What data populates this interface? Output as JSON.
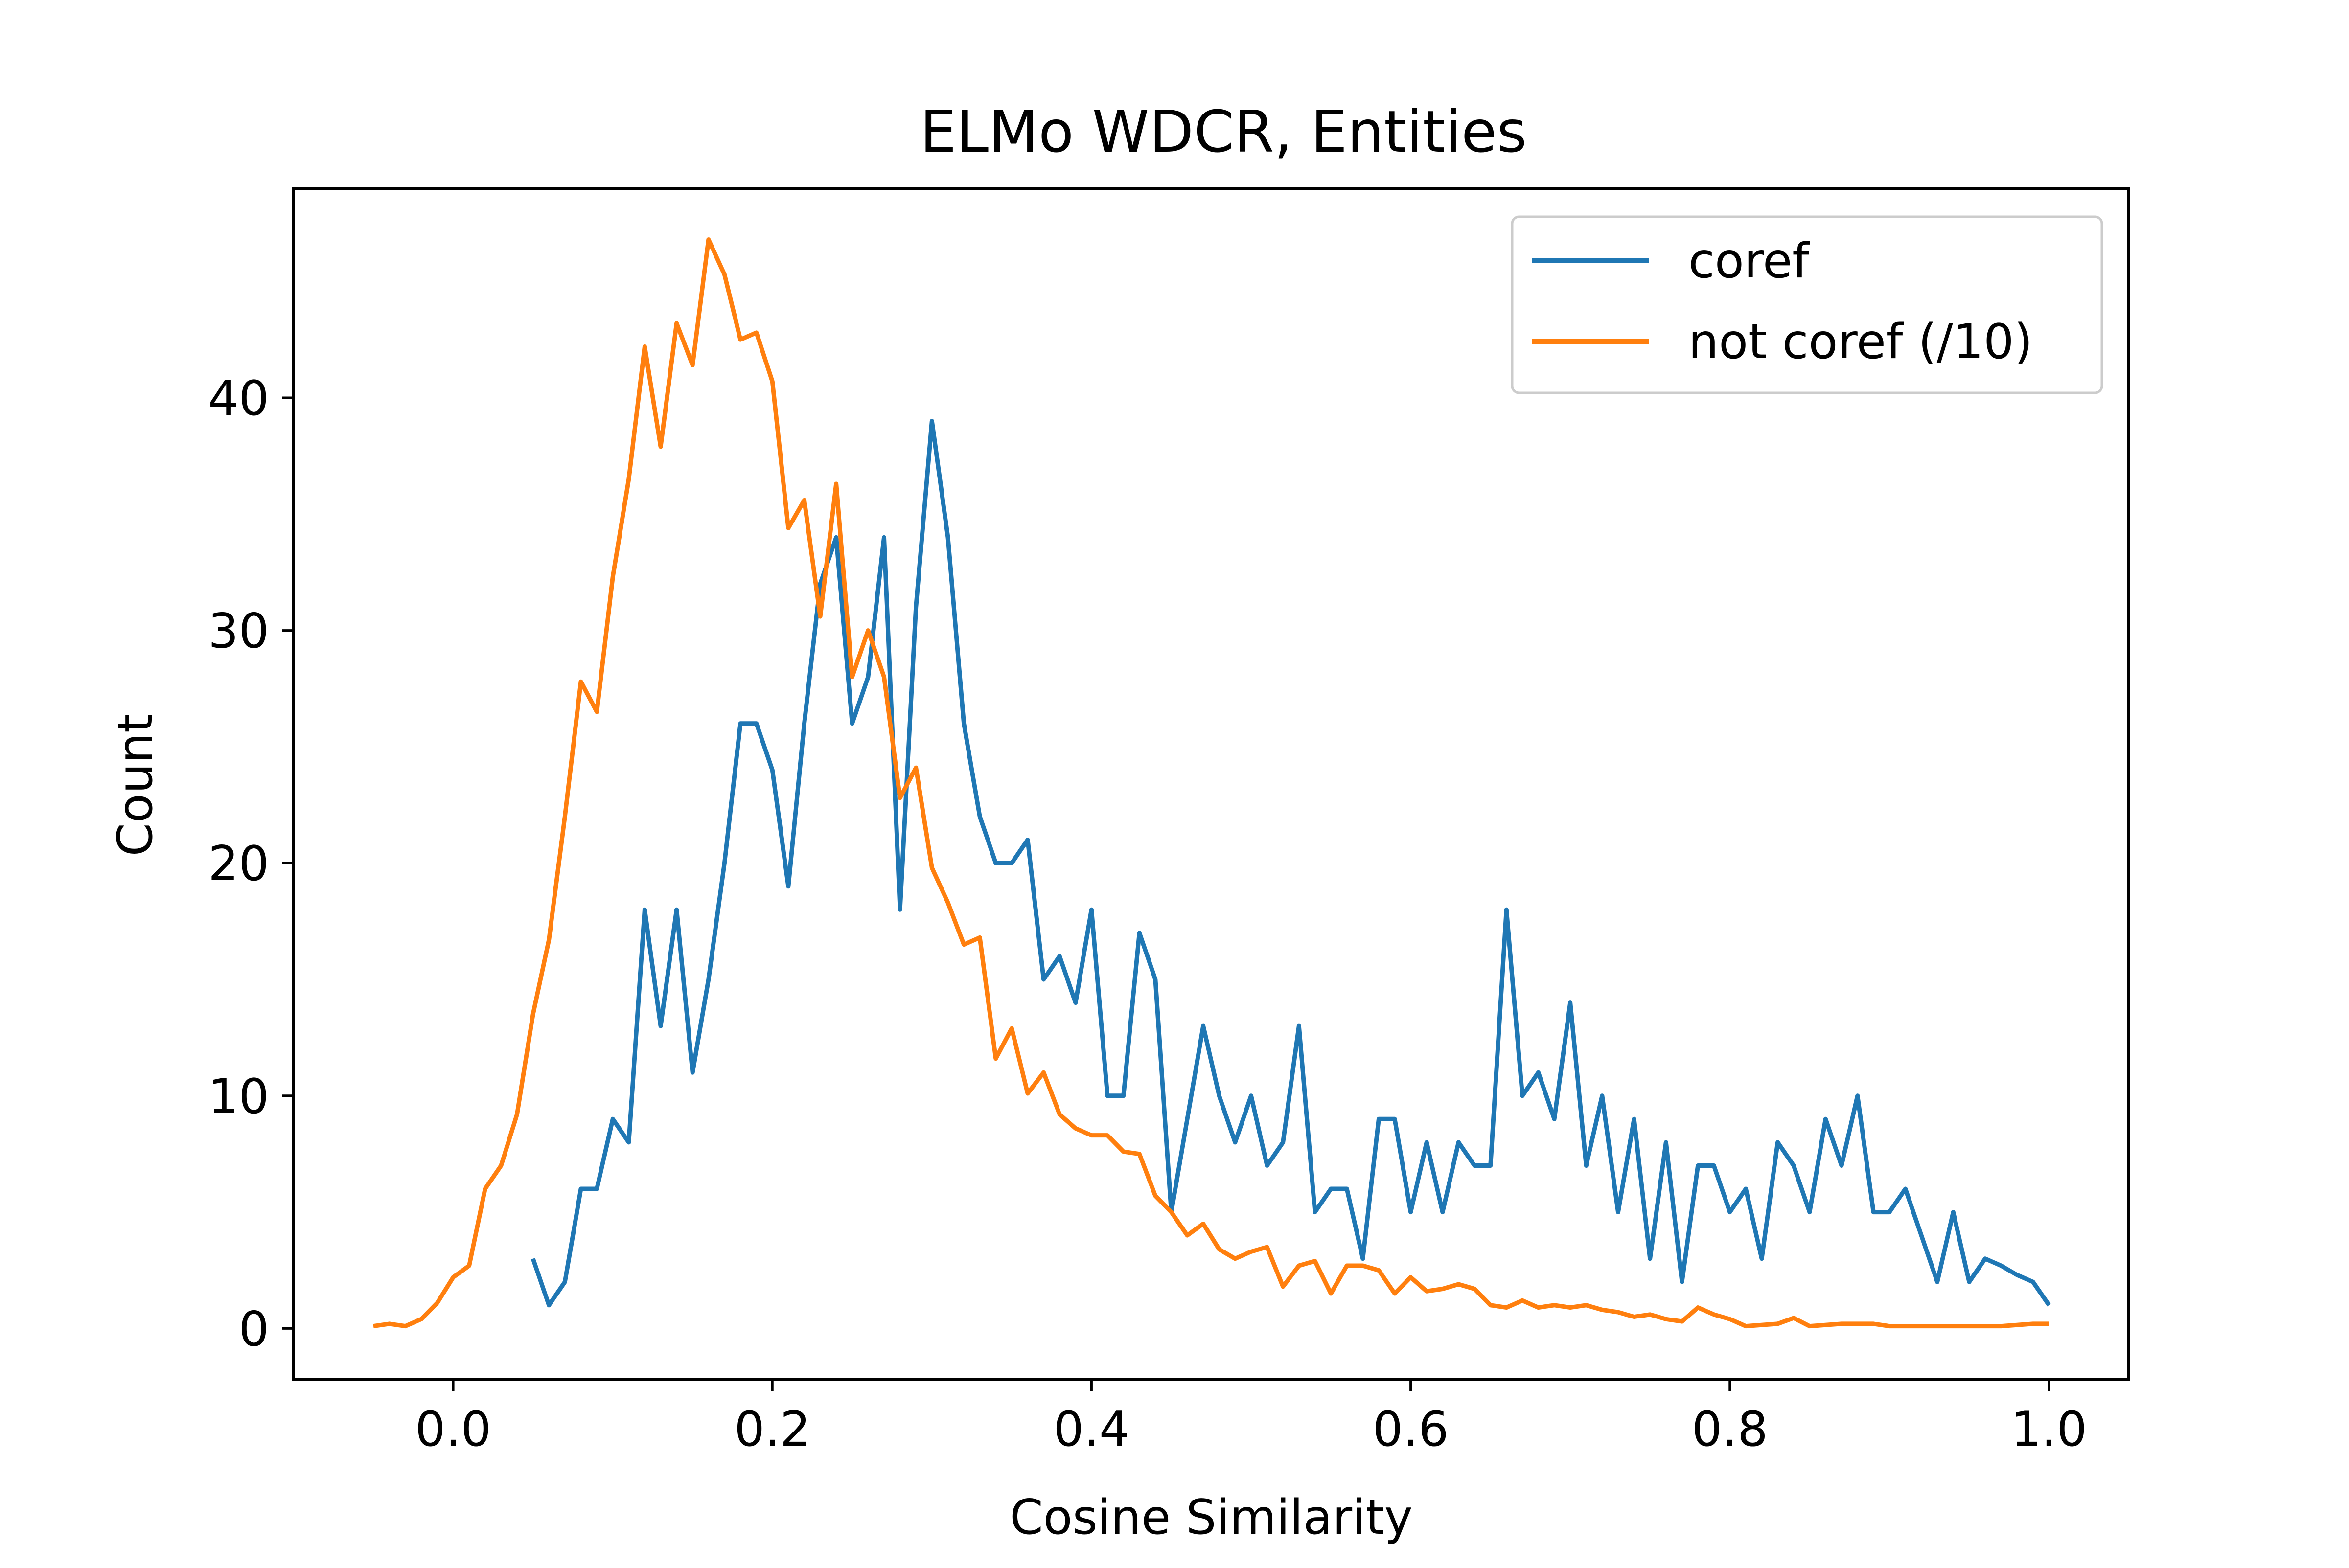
{
  "chart_data": {
    "type": "line",
    "title": "ELMo WDCR, Entities",
    "xlabel": "Cosine Similarity",
    "ylabel": "Count",
    "xlim": [
      -0.1,
      1.05
    ],
    "ylim": [
      -2.2,
      49
    ],
    "x_ticks": [
      {
        "value": 0.0,
        "label": "0.0"
      },
      {
        "value": 0.2,
        "label": "0.2"
      },
      {
        "value": 0.4,
        "label": "0.4"
      },
      {
        "value": 0.6,
        "label": "0.6"
      },
      {
        "value": 0.8,
        "label": "0.8"
      },
      {
        "value": 1.0,
        "label": "1.0"
      }
    ],
    "y_ticks": [
      {
        "value": 0,
        "label": "0"
      },
      {
        "value": 10,
        "label": "10"
      },
      {
        "value": 20,
        "label": "20"
      },
      {
        "value": 30,
        "label": "30"
      },
      {
        "value": 40,
        "label": "40"
      }
    ],
    "grid": false,
    "legend_position": "top-right",
    "series": [
      {
        "name": "coref",
        "color": "#1f77b4",
        "x": [
          0.05,
          0.06,
          0.07,
          0.08,
          0.09,
          0.1,
          0.11,
          0.12,
          0.13,
          0.14,
          0.15,
          0.16,
          0.17,
          0.18,
          0.19,
          0.2,
          0.21,
          0.22,
          0.23,
          0.24,
          0.25,
          0.26,
          0.27,
          0.28,
          0.29,
          0.3,
          0.31,
          0.32,
          0.33,
          0.34,
          0.35,
          0.36,
          0.37,
          0.38,
          0.39,
          0.4,
          0.41,
          0.42,
          0.43,
          0.44,
          0.45,
          0.46,
          0.47,
          0.48,
          0.49,
          0.5,
          0.51,
          0.52,
          0.53,
          0.54,
          0.55,
          0.56,
          0.57,
          0.58,
          0.59,
          0.6,
          0.61,
          0.62,
          0.63,
          0.64,
          0.65,
          0.66,
          0.67,
          0.68,
          0.69,
          0.7,
          0.71,
          0.72,
          0.73,
          0.74,
          0.75,
          0.76,
          0.77,
          0.78,
          0.79,
          0.8,
          0.81,
          0.82,
          0.83,
          0.84,
          0.85,
          0.86,
          0.87,
          0.88,
          0.89,
          0.9,
          0.91,
          0.92,
          0.93,
          0.94,
          0.95,
          0.96,
          0.97,
          0.98,
          0.99,
          1.0
        ],
        "y": [
          3,
          1,
          2,
          6,
          6,
          9,
          8,
          18,
          13,
          18,
          11,
          15,
          20,
          26,
          26,
          24,
          19,
          26,
          32,
          34,
          26,
          28,
          34,
          18,
          31,
          39,
          34,
          26,
          22,
          20,
          20,
          21,
          15,
          16,
          14,
          18,
          10,
          10,
          17,
          15,
          5,
          9,
          13,
          10,
          8,
          10,
          7,
          8,
          13,
          5,
          6,
          6,
          3,
          9,
          9,
          5,
          8,
          5,
          8,
          7,
          7,
          18,
          10,
          11,
          9,
          14,
          7,
          10,
          5,
          9,
          3,
          8,
          2,
          7,
          7,
          5,
          6,
          3,
          8,
          7,
          5,
          9,
          7,
          10,
          5,
          5,
          6,
          4,
          2,
          5,
          2,
          3,
          2.7,
          2.3,
          2,
          1
        ]
      },
      {
        "name": "not coref (/10)",
        "color": "#ff7f0e",
        "x": [
          -0.05,
          -0.04,
          -0.03,
          -0.02,
          -0.01,
          0.0,
          0.01,
          0.02,
          0.03,
          0.04,
          0.05,
          0.06,
          0.07,
          0.08,
          0.09,
          0.1,
          0.11,
          0.12,
          0.13,
          0.14,
          0.15,
          0.16,
          0.17,
          0.18,
          0.19,
          0.2,
          0.21,
          0.22,
          0.23,
          0.24,
          0.25,
          0.26,
          0.27,
          0.28,
          0.29,
          0.3,
          0.31,
          0.32,
          0.33,
          0.34,
          0.35,
          0.36,
          0.37,
          0.38,
          0.39,
          0.4,
          0.41,
          0.42,
          0.43,
          0.44,
          0.45,
          0.46,
          0.47,
          0.48,
          0.49,
          0.5,
          0.51,
          0.52,
          0.53,
          0.54,
          0.55,
          0.56,
          0.57,
          0.58,
          0.59,
          0.6,
          0.61,
          0.62,
          0.63,
          0.64,
          0.65,
          0.66,
          0.67,
          0.68,
          0.69,
          0.7,
          0.71,
          0.72,
          0.73,
          0.74,
          0.75,
          0.76,
          0.77,
          0.78,
          0.79,
          0.8,
          0.81,
          0.82,
          0.83,
          0.84,
          0.85,
          0.86,
          0.87,
          0.88,
          0.89,
          0.9,
          0.91,
          0.92,
          0.93,
          0.94,
          0.95,
          0.96,
          0.97,
          0.98,
          0.99,
          1.0
        ],
        "y": [
          0.1,
          0.2,
          0.1,
          0.4,
          1.1,
          2.2,
          2.7,
          6.0,
          7.0,
          9.2,
          13.5,
          16.7,
          22.0,
          27.8,
          26.5,
          32.3,
          36.5,
          42.2,
          37.9,
          43.2,
          41.4,
          46.8,
          45.3,
          42.5,
          42.8,
          40.7,
          34.4,
          35.6,
          30.6,
          36.3,
          28.0,
          30.0,
          28.0,
          22.8,
          24.1,
          19.8,
          18.3,
          16.5,
          16.8,
          11.6,
          12.9,
          10.1,
          11.0,
          9.2,
          8.6,
          8.3,
          8.3,
          7.6,
          7.5,
          5.7,
          5.0,
          4.0,
          4.5,
          3.4,
          3.0,
          3.3,
          3.5,
          1.8,
          2.7,
          2.9,
          1.5,
          2.7,
          2.7,
          2.5,
          1.5,
          2.2,
          1.6,
          1.7,
          1.9,
          1.7,
          1.0,
          0.9,
          1.2,
          0.9,
          1.0,
          0.9,
          1.0,
          0.8,
          0.7,
          0.5,
          0.6,
          0.4,
          0.3,
          0.9,
          0.6,
          0.4,
          0.1,
          0.15,
          0.2,
          0.45,
          0.1,
          0.15,
          0.2,
          0.2,
          0.2,
          0.1,
          0.1,
          0.1,
          0.1,
          0.1,
          0.1,
          0.1,
          0.1,
          0.15,
          0.2,
          0.2
        ]
      }
    ]
  }
}
